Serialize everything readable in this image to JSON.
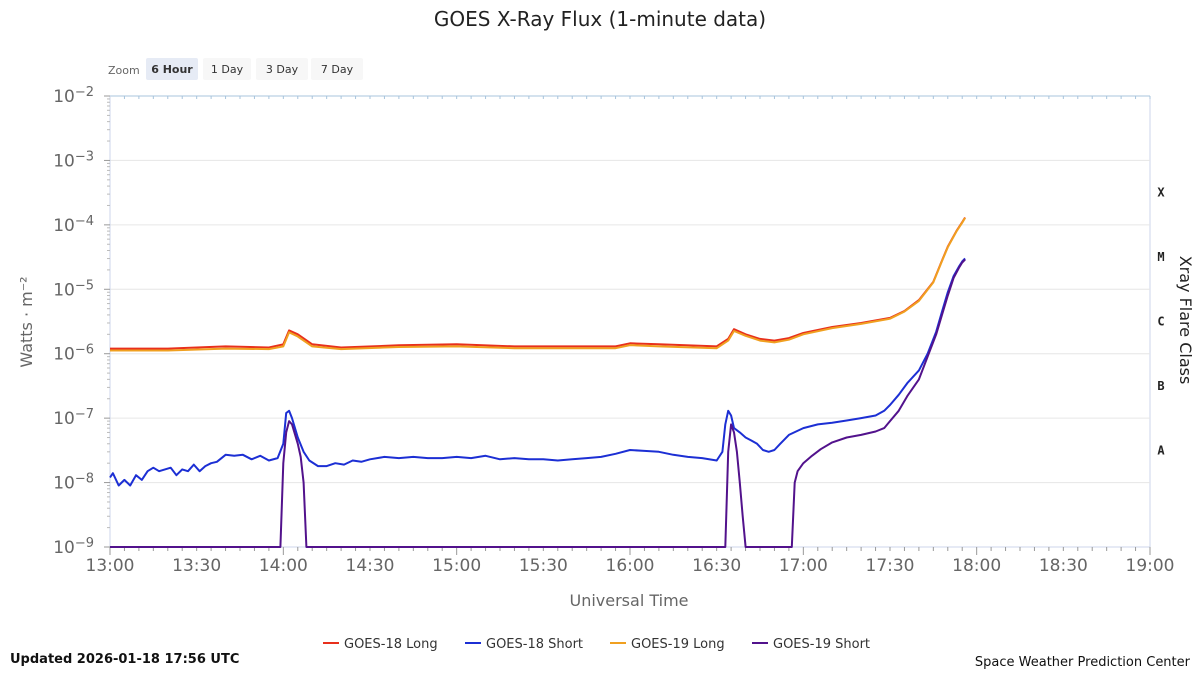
{
  "chart_data": {
    "type": "line",
    "title": "GOES X-Ray Flux (1-minute data)",
    "xlabel": "Universal Time",
    "ylabel": "Watts · m⁻²",
    "y2label": "Xray Flare Class",
    "yscale": "log",
    "ylim": [
      1e-09,
      0.01
    ],
    "xlim": [
      "13:00",
      "19:00"
    ],
    "x_ticks": [
      "13:00",
      "13:30",
      "14:00",
      "14:30",
      "15:00",
      "15:30",
      "16:00",
      "16:30",
      "17:00",
      "17:30",
      "18:00",
      "18:30",
      "19:00"
    ],
    "y_ticks": [
      {
        "value": 0.01,
        "base": "10",
        "exp": "−2"
      },
      {
        "value": 0.001,
        "base": "10",
        "exp": "−3"
      },
      {
        "value": 0.0001,
        "base": "10",
        "exp": "−4"
      },
      {
        "value": 1e-05,
        "base": "10",
        "exp": "−5"
      },
      {
        "value": 1e-06,
        "base": "10",
        "exp": "−6"
      },
      {
        "value": 1e-07,
        "base": "10",
        "exp": "−7"
      },
      {
        "value": 1e-08,
        "base": "10",
        "exp": "−8"
      },
      {
        "value": 1e-09,
        "base": "10",
        "exp": "−9"
      }
    ],
    "flare_classes": [
      {
        "label": "X",
        "level": 0.0001
      },
      {
        "label": "M",
        "level": 1e-05
      },
      {
        "label": "C",
        "level": 1e-06
      },
      {
        "label": "B",
        "level": 1e-07
      },
      {
        "label": "A",
        "level": 1e-08
      }
    ],
    "grid": true,
    "legend_position": "bottom-center",
    "series": [
      {
        "name": "GOES-18 Long",
        "color": "#e8301c",
        "x": [
          "13:00",
          "13:20",
          "13:40",
          "13:55",
          "14:00",
          "14:02",
          "14:05",
          "14:10",
          "14:20",
          "14:40",
          "15:00",
          "15:20",
          "15:40",
          "15:55",
          "16:00",
          "16:10",
          "16:30",
          "16:34",
          "16:36",
          "16:40",
          "16:45",
          "16:50",
          "16:55",
          "17:00",
          "17:10",
          "17:20",
          "17:30",
          "17:35",
          "17:40",
          "17:45",
          "17:48",
          "17:50",
          "17:53",
          "17:55",
          "17:56"
        ],
        "y": [
          1.2e-06,
          1.2e-06,
          1.3e-06,
          1.25e-06,
          1.4e-06,
          2.3e-06,
          2e-06,
          1.4e-06,
          1.25e-06,
          1.35e-06,
          1.4e-06,
          1.3e-06,
          1.3e-06,
          1.3e-06,
          1.45e-06,
          1.4e-06,
          1.3e-06,
          1.7e-06,
          2.4e-06,
          2e-06,
          1.7e-06,
          1.6e-06,
          1.75e-06,
          2.1e-06,
          2.6e-06,
          3e-06,
          3.6e-06,
          4.6e-06,
          6.8e-06,
          1.3e-05,
          2.8e-05,
          4.6e-05,
          8e-05,
          0.00011,
          0.00013
        ]
      },
      {
        "name": "GOES-18 Short",
        "color": "#1c2fd4",
        "x": [
          "13:00",
          "13:01",
          "13:03",
          "13:05",
          "13:07",
          "13:09",
          "13:11",
          "13:13",
          "13:15",
          "13:17",
          "13:19",
          "13:21",
          "13:23",
          "13:25",
          "13:27",
          "13:29",
          "13:31",
          "13:33",
          "13:35",
          "13:37",
          "13:40",
          "13:43",
          "13:46",
          "13:49",
          "13:52",
          "13:55",
          "13:58",
          "14:00",
          "14:01",
          "14:02",
          "14:03",
          "14:05",
          "14:07",
          "14:09",
          "14:12",
          "14:15",
          "14:18",
          "14:21",
          "14:24",
          "14:27",
          "14:30",
          "14:35",
          "14:40",
          "14:45",
          "14:50",
          "14:55",
          "15:00",
          "15:05",
          "15:10",
          "15:15",
          "15:20",
          "15:25",
          "15:30",
          "15:35",
          "15:40",
          "15:45",
          "15:50",
          "15:55",
          "16:00",
          "16:05",
          "16:10",
          "16:15",
          "16:20",
          "16:25",
          "16:30",
          "16:32",
          "16:33",
          "16:34",
          "16:35",
          "16:36",
          "16:38",
          "16:40",
          "16:42",
          "16:44",
          "16:46",
          "16:48",
          "16:50",
          "16:52",
          "16:55",
          "17:00",
          "17:05",
          "17:10",
          "17:15",
          "17:20",
          "17:25",
          "17:28",
          "17:30",
          "17:33",
          "17:36",
          "17:40",
          "17:43",
          "17:46",
          "17:48",
          "17:50",
          "17:52",
          "17:54",
          "17:55",
          "17:56"
        ],
        "y": [
          1.2e-08,
          1.4e-08,
          9e-09,
          1.1e-08,
          9e-09,
          1.3e-08,
          1.1e-08,
          1.5e-08,
          1.7e-08,
          1.5e-08,
          1.6e-08,
          1.7e-08,
          1.3e-08,
          1.6e-08,
          1.5e-08,
          1.9e-08,
          1.5e-08,
          1.8e-08,
          2e-08,
          2.1e-08,
          2.7e-08,
          2.6e-08,
          2.7e-08,
          2.3e-08,
          2.6e-08,
          2.2e-08,
          2.4e-08,
          4e-08,
          1.2e-07,
          1.3e-07,
          1e-07,
          5e-08,
          3e-08,
          2.2e-08,
          1.8e-08,
          1.8e-08,
          2e-08,
          1.9e-08,
          2.2e-08,
          2.1e-08,
          2.3e-08,
          2.5e-08,
          2.4e-08,
          2.5e-08,
          2.4e-08,
          2.4e-08,
          2.5e-08,
          2.4e-08,
          2.6e-08,
          2.3e-08,
          2.4e-08,
          2.3e-08,
          2.3e-08,
          2.2e-08,
          2.3e-08,
          2.4e-08,
          2.5e-08,
          2.8e-08,
          3.2e-08,
          3.1e-08,
          3e-08,
          2.7e-08,
          2.5e-08,
          2.4e-08,
          2.2e-08,
          3e-08,
          8e-08,
          1.3e-07,
          1.1e-07,
          7e-08,
          6e-08,
          5e-08,
          4.5e-08,
          4e-08,
          3.2e-08,
          3e-08,
          3.2e-08,
          4e-08,
          5.5e-08,
          7e-08,
          8e-08,
          8.5e-08,
          9.2e-08,
          1e-07,
          1.1e-07,
          1.3e-07,
          1.6e-07,
          2.3e-07,
          3.5e-07,
          5.5e-07,
          1e-06,
          2.2e-06,
          4.5e-06,
          9e-06,
          1.6e-05,
          2.3e-05,
          2.7e-05,
          3e-05
        ]
      },
      {
        "name": "GOES-19 Long",
        "color": "#f0a020",
        "x": [
          "13:00",
          "13:20",
          "13:40",
          "13:55",
          "14:00",
          "14:02",
          "14:05",
          "14:10",
          "14:20",
          "14:40",
          "15:00",
          "15:20",
          "15:40",
          "15:55",
          "16:00",
          "16:10",
          "16:30",
          "16:34",
          "16:36",
          "16:40",
          "16:45",
          "16:50",
          "16:55",
          "17:00",
          "17:10",
          "17:20",
          "17:30",
          "17:35",
          "17:40",
          "17:45",
          "17:48",
          "17:50",
          "17:53",
          "17:55",
          "17:56"
        ],
        "y": [
          1.12e-06,
          1.12e-06,
          1.2e-06,
          1.18e-06,
          1.3e-06,
          2.15e-06,
          1.85e-06,
          1.3e-06,
          1.18e-06,
          1.27e-06,
          1.3e-06,
          1.22e-06,
          1.22e-06,
          1.22e-06,
          1.36e-06,
          1.3e-06,
          1.22e-06,
          1.6e-06,
          2.25e-06,
          1.9e-06,
          1.6e-06,
          1.5e-06,
          1.65e-06,
          2e-06,
          2.5e-06,
          2.9e-06,
          3.5e-06,
          4.5e-06,
          6.6e-06,
          1.28e-05,
          2.75e-05,
          4.5e-05,
          7.9e-05,
          0.000108,
          0.000128
        ]
      },
      {
        "name": "GOES-19 Short",
        "color": "#52128c",
        "x": [
          "13:00",
          "13:59",
          "14:00",
          "14:01",
          "14:02",
          "14:03",
          "14:05",
          "14:06",
          "14:07",
          "14:08",
          "16:33",
          "16:34",
          "16:35",
          "16:36",
          "16:37",
          "16:38",
          "16:39",
          "16:40",
          "16:56",
          "16:57",
          "16:58",
          "17:00",
          "17:03",
          "17:06",
          "17:10",
          "17:15",
          "17:20",
          "17:25",
          "17:28",
          "17:30",
          "17:33",
          "17:36",
          "17:40",
          "17:43",
          "17:46",
          "17:48",
          "17:50",
          "17:52",
          "17:54",
          "17:55",
          "17:56"
        ],
        "y": [
          1e-09,
          1e-09,
          2e-08,
          6e-08,
          9e-08,
          8e-08,
          4e-08,
          2.5e-08,
          1e-08,
          1e-09,
          1e-09,
          3e-08,
          8e-08,
          6e-08,
          3e-08,
          1e-08,
          3e-09,
          1e-09,
          1e-09,
          1e-08,
          1.5e-08,
          2e-08,
          2.6e-08,
          3.3e-08,
          4.2e-08,
          5e-08,
          5.5e-08,
          6.2e-08,
          7e-08,
          9e-08,
          1.3e-07,
          2.2e-07,
          4e-07,
          9e-07,
          2e-06,
          4e-06,
          8e-06,
          1.5e-05,
          2.2e-05,
          2.6e-05,
          2.9e-05
        ]
      }
    ]
  },
  "zoom": {
    "label": "Zoom",
    "buttons": [
      "6 Hour",
      "1 Day",
      "3 Day",
      "7 Day"
    ],
    "selected": "6 Hour"
  },
  "footer": {
    "updated": "Updated 2026-01-18 17:56 UTC",
    "credit": "Space Weather Prediction Center"
  }
}
